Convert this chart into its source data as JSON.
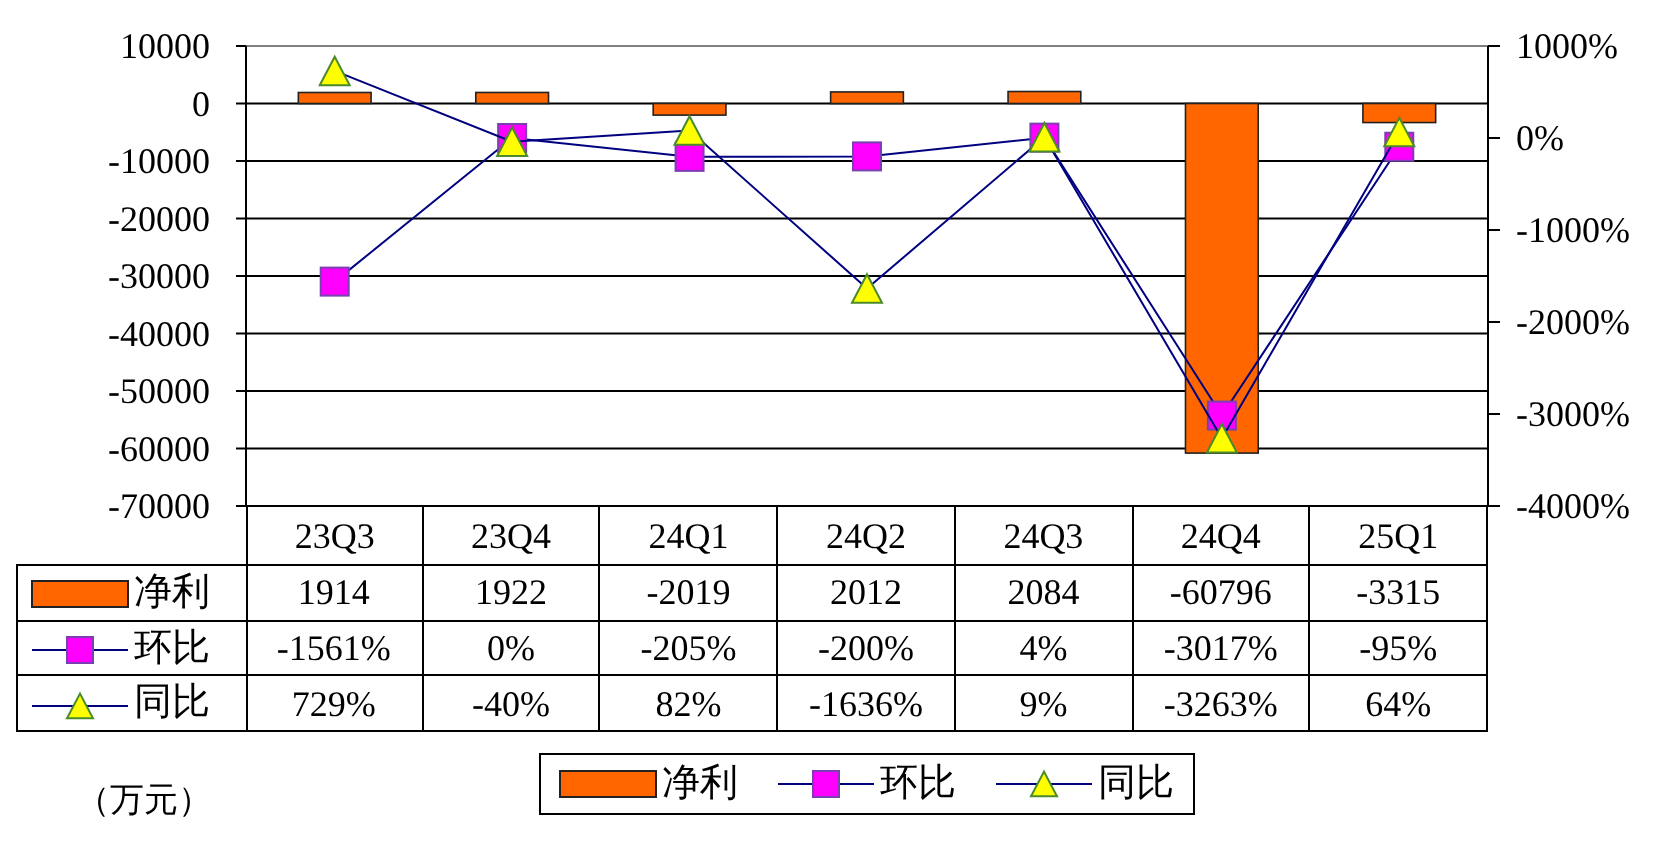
{
  "chart_data": {
    "type": "bar",
    "categories": [
      "23Q3",
      "23Q4",
      "24Q1",
      "24Q2",
      "24Q3",
      "24Q4",
      "25Q1"
    ],
    "series": [
      {
        "name": "净利",
        "color": "#ff6600",
        "values": [
          1914,
          1922,
          -2019,
          2012,
          2084,
          -60796,
          -3315
        ],
        "value_labels": [
          "1914",
          "1922",
          "-2019",
          "2012",
          "2084",
          "-60796",
          "-3315"
        ]
      },
      {
        "name": "环比",
        "type": "line",
        "axis": "y2",
        "marker": "square",
        "color": "#ff00ff",
        "values": [
          -1561,
          0,
          -205,
          -200,
          4,
          -3017,
          -95
        ],
        "value_labels": [
          "-1561%",
          "0%",
          "-205%",
          "-200%",
          "4%",
          "-3017%",
          "-95%"
        ]
      },
      {
        "name": "同比",
        "type": "line",
        "axis": "y2",
        "marker": "triangle",
        "color": "#ffff00",
        "values": [
          729,
          -40,
          82,
          -1636,
          9,
          -3263,
          64
        ],
        "value_labels": [
          "729%",
          "-40%",
          "82%",
          "-1636%",
          "9%",
          "-3263%",
          "64%"
        ]
      }
    ],
    "ylim": [
      -70000,
      10000
    ],
    "yticks": [
      -70000,
      -60000,
      -50000,
      -40000,
      -30000,
      -20000,
      -10000,
      0,
      10000
    ],
    "y2lim": [
      -4000,
      1000
    ],
    "y2ticks": [
      {
        "value": -4000,
        "label": "-4000%"
      },
      {
        "value": -3000,
        "label": "-3000%"
      },
      {
        "value": -2000,
        "label": "-2000%"
      },
      {
        "value": -1000,
        "label": "-1000%"
      },
      {
        "value": 0,
        "label": "0%"
      },
      {
        "value": 1000,
        "label": "1000%"
      }
    ],
    "grid": "y",
    "legend": "bottom",
    "annotations": [
      "（万元）"
    ]
  }
}
